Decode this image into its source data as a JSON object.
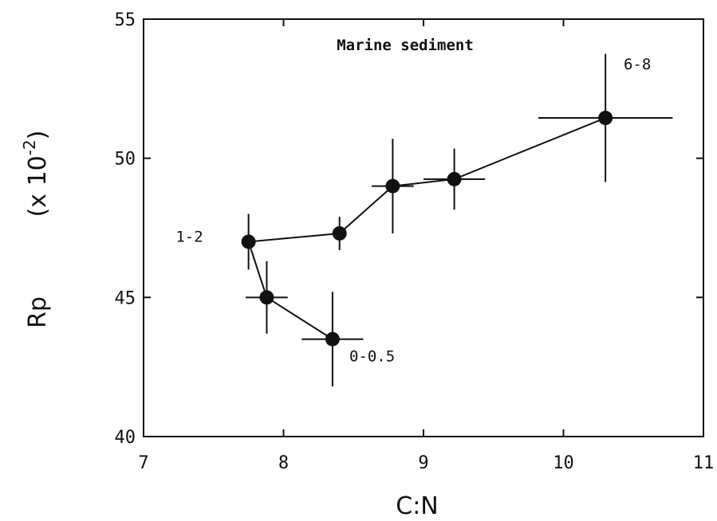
{
  "chart_data": {
    "type": "scatter",
    "title": "Marine sediment",
    "xlabel": "C:N",
    "ylabel": "Rp",
    "ylabel_unit": "(x 10",
    "ylabel_exponent": "-2",
    "ylabel_close": ")",
    "xlim": [
      7,
      11
    ],
    "ylim": [
      40,
      55
    ],
    "xticks": [
      7,
      8,
      9,
      10,
      11
    ],
    "yticks": [
      40,
      45,
      50,
      55
    ],
    "grid": false,
    "connected": true,
    "series": [
      {
        "points": [
          {
            "x": 8.35,
            "y": 43.5,
            "xerr": 0.22,
            "yerr": 1.7
          },
          {
            "x": 7.88,
            "y": 45.0,
            "xerr": 0.15,
            "yerr": 1.3
          },
          {
            "x": 7.75,
            "y": 47.0,
            "xerr": 0.0,
            "yerr": 1.0
          },
          {
            "x": 8.4,
            "y": 47.3,
            "xerr": 0.0,
            "yerr": 0.6
          },
          {
            "x": 8.78,
            "y": 49.0,
            "xerr": 0.15,
            "yerr": 1.7
          },
          {
            "x": 9.22,
            "y": 49.25,
            "xerr": 0.22,
            "yerr": 1.1
          },
          {
            "x": 10.3,
            "y": 51.45,
            "xerr": 0.48,
            "yerr": 2.3
          }
        ]
      }
    ],
    "annotations": [
      {
        "text": "0-0.5",
        "x": 8.47,
        "y": 42.7
      },
      {
        "text": "1-2",
        "x": 7.23,
        "y": 47.0
      },
      {
        "text": "6-8",
        "x": 10.43,
        "y": 53.2
      }
    ]
  }
}
